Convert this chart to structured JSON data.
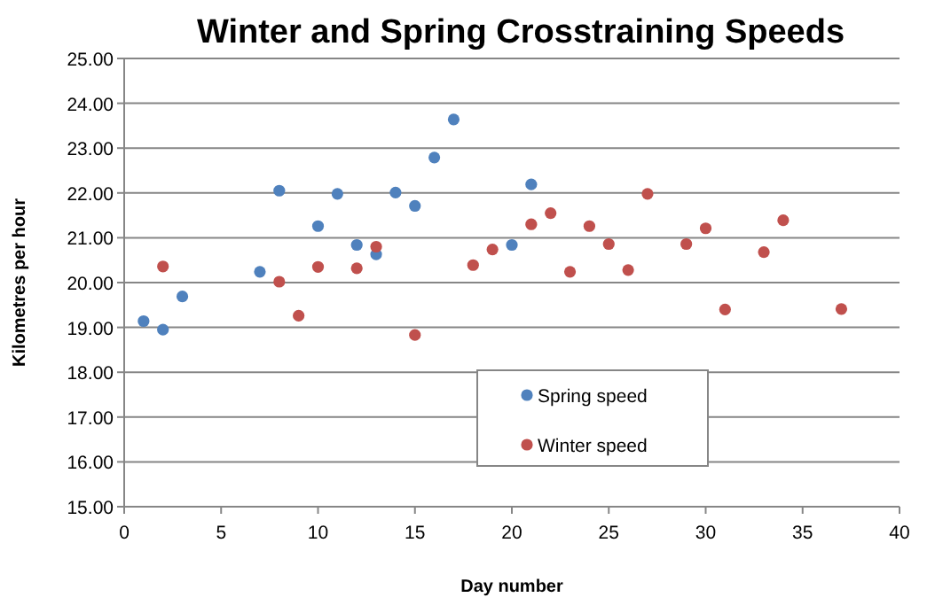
{
  "chart_data": {
    "type": "scatter",
    "title": "Winter and Spring Crosstraining Speeds",
    "xlabel": "Day number",
    "ylabel": "Kilometres per hour",
    "xlim": [
      0,
      40
    ],
    "xticks": [
      0,
      5,
      10,
      15,
      20,
      25,
      30,
      35,
      40
    ],
    "ylim": [
      15,
      25
    ],
    "yticks": [
      {
        "value": 15,
        "label": "15.00"
      },
      {
        "value": 16,
        "label": "16.00"
      },
      {
        "value": 17,
        "label": "17.00"
      },
      {
        "value": 18,
        "label": "18.00"
      },
      {
        "value": 19,
        "label": "19.00"
      },
      {
        "value": 20,
        "label": "20.00"
      },
      {
        "value": 21,
        "label": "21.00"
      },
      {
        "value": 22,
        "label": "22.00"
      },
      {
        "value": 23,
        "label": "23.00"
      },
      {
        "value": 24,
        "label": "24.00"
      },
      {
        "value": 25,
        "label": "25.00"
      }
    ],
    "grid": "y",
    "legend": "bottom",
    "marker": "circle",
    "series": [
      {
        "name": "Spring speed",
        "color": "#4f81bd",
        "x": [
          1,
          2,
          3,
          7,
          8,
          10,
          11,
          12,
          13,
          14,
          15,
          16,
          17,
          20,
          21
        ],
        "values": [
          19.14,
          18.95,
          19.69,
          20.24,
          22.05,
          21.26,
          21.98,
          20.84,
          20.63,
          22.01,
          21.71,
          22.79,
          23.64,
          20.84,
          22.19
        ]
      },
      {
        "name": "Winter speed",
        "color": "#c0504d",
        "x": [
          2,
          8,
          9,
          10,
          12,
          13,
          15,
          18,
          19,
          21,
          22,
          23,
          24,
          25,
          26,
          27,
          29,
          30,
          31,
          33,
          34,
          37
        ],
        "values": [
          20.36,
          20.02,
          19.26,
          20.35,
          20.32,
          20.8,
          18.83,
          20.39,
          20.74,
          21.3,
          21.55,
          20.24,
          21.26,
          20.86,
          20.28,
          21.98,
          20.86,
          21.21,
          19.4,
          20.68,
          21.39,
          19.41
        ]
      }
    ]
  }
}
